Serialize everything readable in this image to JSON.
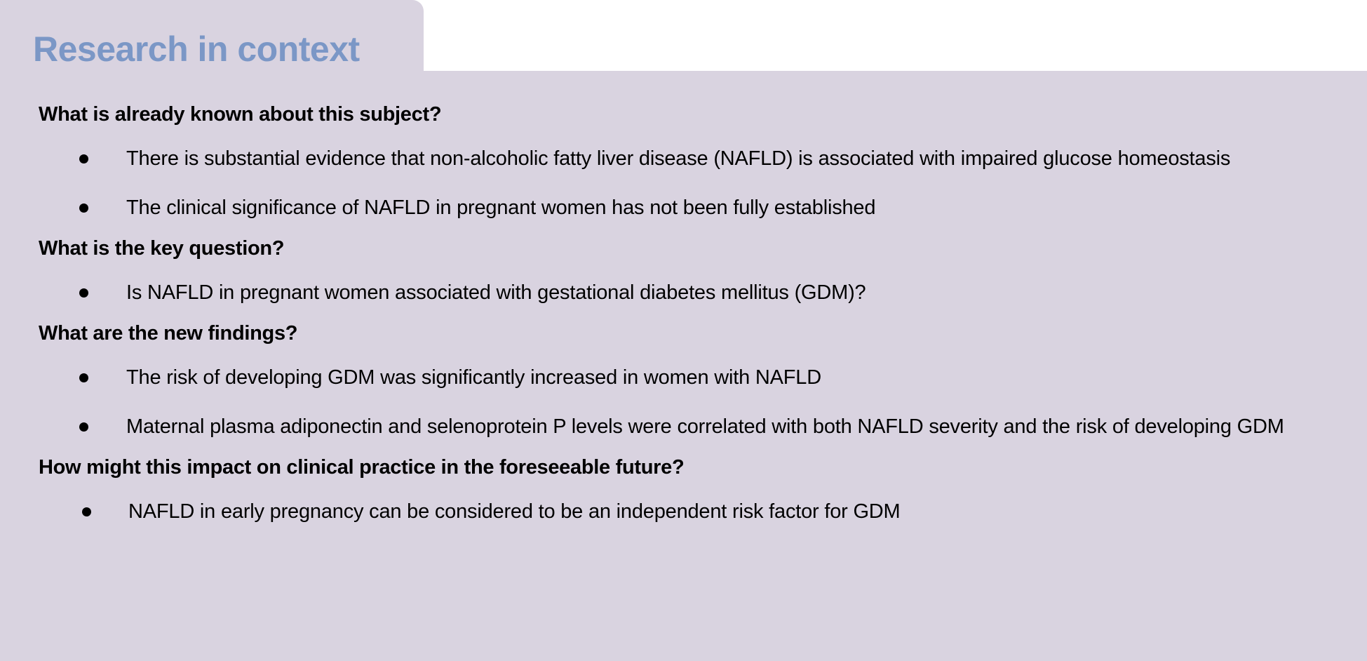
{
  "box": {
    "title": "Research in context",
    "background_color": "#d9d3e0",
    "title_color": "#7b97c6"
  },
  "sections": [
    {
      "heading": "What is already known about this subject?",
      "bullets": [
        "There is substantial evidence that non-alcoholic fatty liver disease (NAFLD) is associated with impaired glucose homeostasis",
        "The clinical significance of NAFLD in pregnant women has not been fully established"
      ]
    },
    {
      "heading": "What is the key question?",
      "bullets": [
        "Is NAFLD in pregnant women associated with gestational diabetes mellitus (GDM)?"
      ]
    },
    {
      "heading": "What are the new findings?",
      "bullets": [
        "The risk of developing GDM was significantly increased in women with NAFLD",
        "Maternal plasma adiponectin and selenoprotein P levels were correlated with both NAFLD severity and the risk of developing GDM"
      ]
    },
    {
      "heading": "How might this impact on clinical practice in the foreseeable future?",
      "bullets": [
        "NAFLD in early pregnancy can be considered to be an independent risk factor for GDM"
      ]
    }
  ]
}
